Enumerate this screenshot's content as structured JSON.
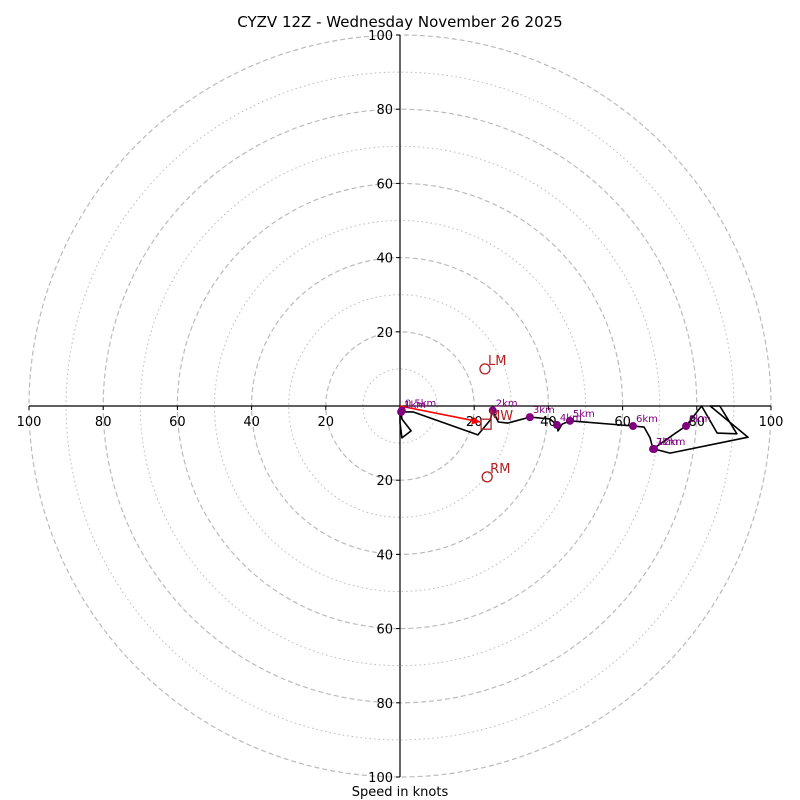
{
  "chart_data": {
    "type": "hodograph",
    "title": "CYZV 12Z - Wednesday November 26 2025",
    "xlabel": "Speed in knots",
    "ylabel": "",
    "xlim": [
      -100,
      100
    ],
    "ylim": [
      -100,
      100
    ],
    "grid": {
      "dashed_rings": [
        20,
        40,
        60,
        80,
        100
      ],
      "dotted_rings": [
        10,
        30,
        50,
        70,
        90
      ]
    },
    "x_tick_labels": [
      "100",
      "80",
      "60",
      "40",
      "20",
      "20",
      "40",
      "60",
      "80",
      "100"
    ],
    "x_tick_values": [
      -100,
      -80,
      -60,
      -40,
      -20,
      20,
      40,
      60,
      80,
      100
    ],
    "y_tick_labels": [
      "100",
      "80",
      "60",
      "40",
      "20",
      "20",
      "40",
      "60",
      "80",
      "100"
    ],
    "y_tick_values": [
      100,
      80,
      60,
      40,
      20,
      -20,
      -40,
      -60,
      -80,
      -100
    ],
    "hodograph": {
      "name": "wind profile",
      "color": "#000000",
      "points": [
        [
          0.0,
          -1.6
        ],
        [
          0.0,
          -4.5
        ],
        [
          0.5,
          -8.6
        ],
        [
          3.0,
          -6.7
        ],
        [
          0.5,
          -3.5
        ],
        [
          0.3,
          -1.6
        ],
        [
          3.5,
          -1.6
        ],
        [
          21.0,
          -7.8
        ],
        [
          24.3,
          -3.8
        ],
        [
          25.0,
          -1.2
        ],
        [
          26.5,
          -4.3
        ],
        [
          29.0,
          -4.6
        ],
        [
          35.0,
          -3.0
        ],
        [
          40.4,
          -3.5
        ],
        [
          42.3,
          -5.1
        ],
        [
          42.6,
          -6.7
        ],
        [
          43.7,
          -4.9
        ],
        [
          45.8,
          -4.0
        ],
        [
          62.8,
          -5.4
        ],
        [
          65.8,
          -5.7
        ],
        [
          67.4,
          -8.6
        ],
        [
          68.2,
          -11.6
        ],
        [
          74.0,
          -7.5
        ],
        [
          77.1,
          -5.4
        ],
        [
          81.3,
          0.0
        ],
        [
          85.5,
          -7.3
        ],
        [
          90.8,
          -7.5
        ],
        [
          86.2,
          0.0
        ],
        [
          83.6,
          0.0
        ],
        [
          93.8,
          -8.4
        ],
        [
          72.8,
          -12.7
        ],
        [
          68.5,
          -11.6
        ]
      ]
    },
    "height_markers": [
      {
        "label": "0.5km",
        "u": 0.5,
        "v": -1.2
      },
      {
        "label": "1km",
        "u": 0.3,
        "v": -1.6
      },
      {
        "label": "2km",
        "u": 25.0,
        "v": -1.2
      },
      {
        "label": "3km",
        "u": 35.0,
        "v": -3.0
      },
      {
        "label": "4km",
        "u": 42.3,
        "v": -5.1
      },
      {
        "label": "5km",
        "u": 45.8,
        "v": -4.0
      },
      {
        "label": "6km",
        "u": 62.8,
        "v": -5.4
      },
      {
        "label": "7km",
        "u": 68.2,
        "v": -11.6
      },
      {
        "label": "8km",
        "u": 77.1,
        "v": -5.4
      },
      {
        "label": "12km",
        "u": 68.5,
        "v": -11.6
      }
    ],
    "storm_motions": [
      {
        "label": "LM",
        "u": 22.9,
        "v": 10.0,
        "marker": "circle"
      },
      {
        "label": "RM",
        "u": 23.5,
        "v": -19.1,
        "marker": "circle"
      },
      {
        "label": "MW",
        "u": 23.2,
        "v": -4.9,
        "marker": "square"
      }
    ],
    "shear_vector": {
      "from": [
        0.0,
        0.0
      ],
      "to": [
        21.6,
        -4.3
      ],
      "color": "#ff0000"
    },
    "colors": {
      "hodograph": "#000000",
      "markers": "#800080",
      "storm_motion": "#b22222",
      "shear": "#ff0000",
      "grid": "#bbbbbb"
    }
  }
}
